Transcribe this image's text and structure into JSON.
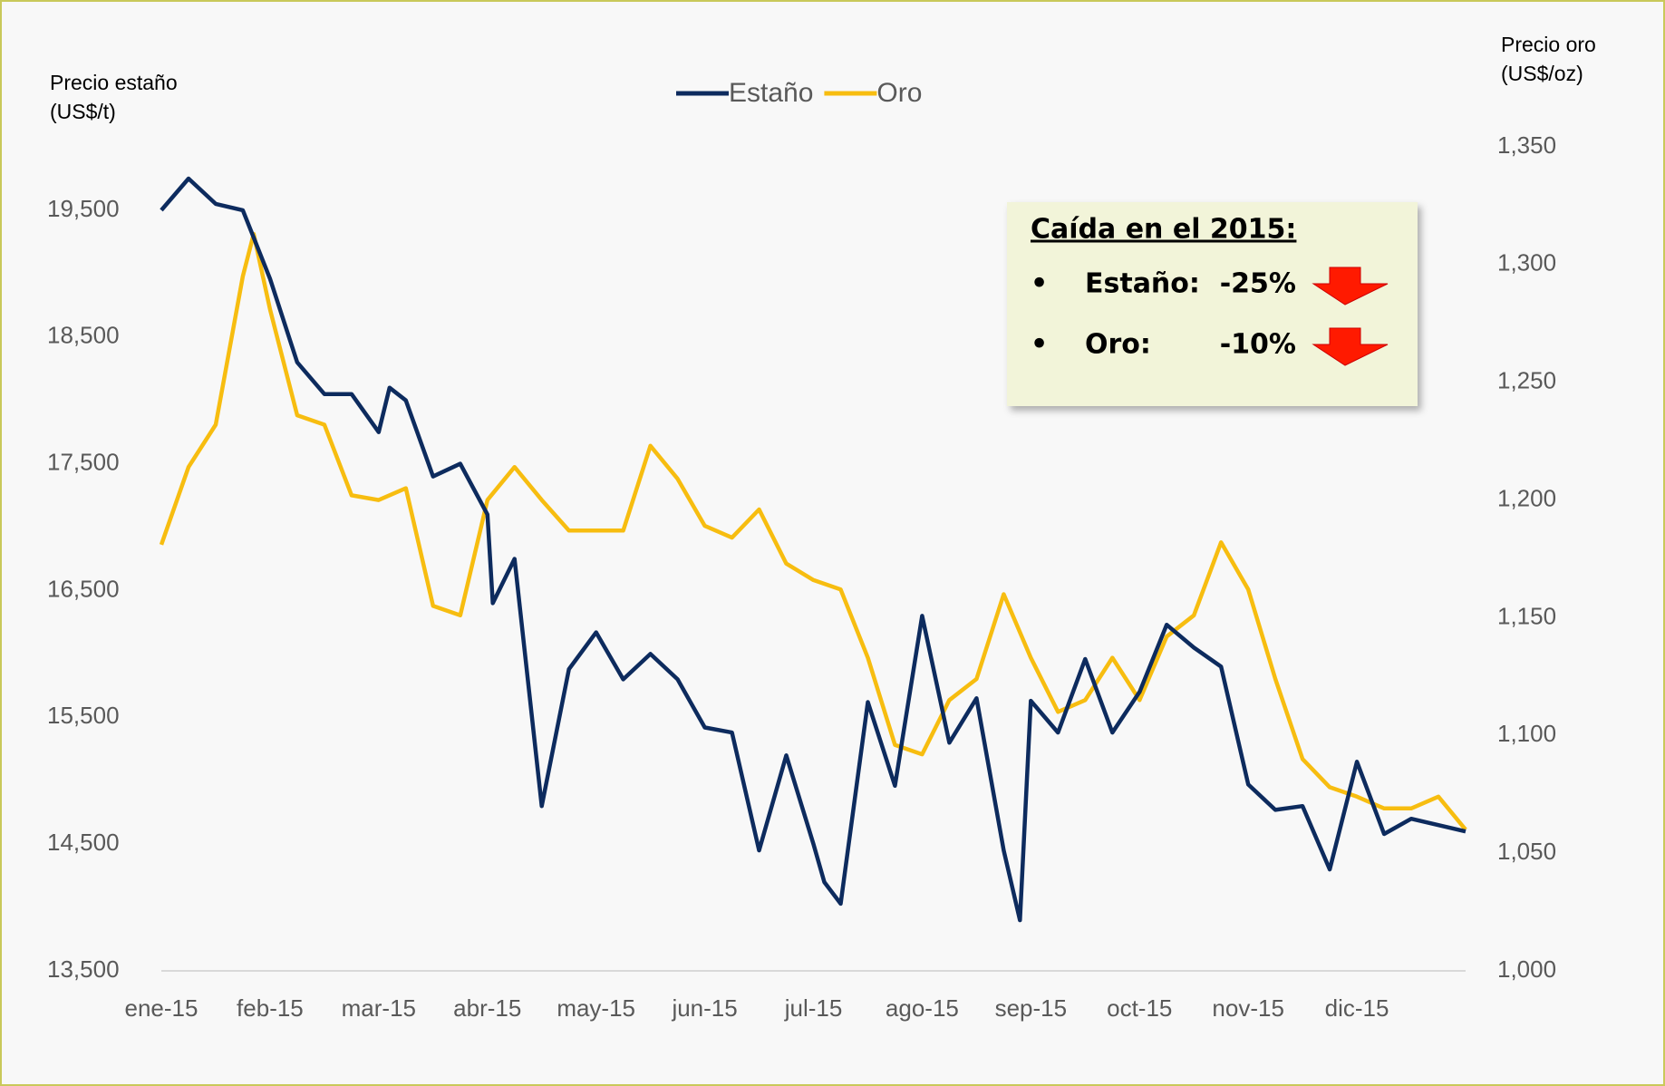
{
  "chart_data": {
    "type": "line",
    "ylabel": [
      "Precio estaño",
      "(US$/t)"
    ],
    "y2label": [
      "Precio oro",
      "(US$/oz)"
    ],
    "xlim": [
      0,
      12
    ],
    "xticks": [
      {
        "value": 0,
        "label": "ene-15"
      },
      {
        "value": 1,
        "label": "feb-15"
      },
      {
        "value": 2,
        "label": "mar-15"
      },
      {
        "value": 3,
        "label": "abr-15"
      },
      {
        "value": 4,
        "label": "may-15"
      },
      {
        "value": 5,
        "label": "jun-15"
      },
      {
        "value": 6,
        "label": "jul-15"
      },
      {
        "value": 7,
        "label": "ago-15"
      },
      {
        "value": 8,
        "label": "sep-15"
      },
      {
        "value": 9,
        "label": "oct-15"
      },
      {
        "value": 10,
        "label": "nov-15"
      },
      {
        "value": 11,
        "label": "dic-15"
      }
    ],
    "ylim": [
      13500,
      20000
    ],
    "yticks": [
      {
        "value": 13500,
        "label": "13,500"
      },
      {
        "value": 14500,
        "label": "14,500"
      },
      {
        "value": 15500,
        "label": "15,500"
      },
      {
        "value": 16500,
        "label": "16,500"
      },
      {
        "value": 17500,
        "label": "17,500"
      },
      {
        "value": 18500,
        "label": "18,500"
      },
      {
        "value": 19500,
        "label": "19,500"
      }
    ],
    "y2lim": [
      1000,
      1350
    ],
    "y2ticks": [
      {
        "value": 1000,
        "label": "1,000"
      },
      {
        "value": 1050,
        "label": "1,050"
      },
      {
        "value": 1100,
        "label": "1,100"
      },
      {
        "value": 1150,
        "label": "1,150"
      },
      {
        "value": 1200,
        "label": "1,200"
      },
      {
        "value": 1250,
        "label": "1,250"
      },
      {
        "value": 1300,
        "label": "1,300"
      },
      {
        "value": 1350,
        "label": "1,350"
      }
    ],
    "legend": "top",
    "series": [
      {
        "name": "Estaño",
        "color": "#0d2b5e",
        "x": [
          0,
          0.25,
          0.5,
          0.75,
          1,
          1.25,
          1.5,
          1.75,
          2,
          2.1,
          2.25,
          2.5,
          2.75,
          3,
          3.05,
          3.25,
          3.5,
          3.75,
          4,
          4.25,
          4.5,
          4.75,
          5,
          5.25,
          5.5,
          5.75,
          6,
          6.1,
          6.25,
          6.5,
          6.75,
          7,
          7.25,
          7.5,
          7.75,
          7.9,
          8,
          8.25,
          8.5,
          8.75,
          9,
          9.25,
          9.5,
          9.75,
          10,
          10.25,
          10.5,
          10.75,
          11,
          11.25,
          11.5,
          11.75,
          12
        ],
        "values": [
          19500,
          19750,
          19550,
          19500,
          18960,
          18300,
          18050,
          18050,
          17750,
          18100,
          18000,
          17400,
          17500,
          17100,
          16400,
          16750,
          14800,
          15880,
          16170,
          15800,
          16000,
          15800,
          15420,
          15380,
          14450,
          15200,
          14500,
          14200,
          14030,
          15620,
          14960,
          16300,
          15300,
          15650,
          14450,
          13900,
          15630,
          15380,
          15960,
          15380,
          15700,
          16230,
          16050,
          15900,
          14970,
          14770,
          14800,
          14300,
          15150,
          14580,
          14700,
          14650,
          14600
        ]
      },
      {
        "name": "Oro",
        "color": "#f7bd10",
        "axis": "y2",
        "x": [
          0,
          0.25,
          0.5,
          0.75,
          0.85,
          1,
          1.25,
          1.5,
          1.75,
          2,
          2.25,
          2.5,
          2.75,
          3,
          3.25,
          3.5,
          3.75,
          4,
          4.25,
          4.5,
          4.75,
          5,
          5.25,
          5.5,
          5.75,
          6,
          6.25,
          6.5,
          6.75,
          7,
          7.25,
          7.5,
          7.75,
          8,
          8.25,
          8.5,
          8.75,
          9,
          9.25,
          9.5,
          9.75,
          10,
          10.25,
          10.5,
          10.75,
          11,
          11.25,
          11.5,
          11.75,
          12
        ],
        "values": [
          1181,
          1214,
          1232,
          1295,
          1313,
          1281,
          1236,
          1232,
          1202,
          1200,
          1205,
          1155,
          1151,
          1200,
          1214,
          1200,
          1187,
          1187,
          1187,
          1223,
          1209,
          1189,
          1184,
          1196,
          1173,
          1166,
          1162,
          1133,
          1096,
          1092,
          1115,
          1124,
          1160,
          1133,
          1110,
          1115,
          1133,
          1115,
          1142,
          1151,
          1182,
          1162,
          1124,
          1090,
          1078,
          1074,
          1069,
          1069,
          1074,
          1060
        ]
      }
    ],
    "annotation": {
      "title": "Caída en el 2015:",
      "rows": [
        {
          "label": "Estaño:",
          "value": "-25%"
        },
        {
          "label": "Oro:",
          "value": "-10%"
        }
      ]
    }
  }
}
